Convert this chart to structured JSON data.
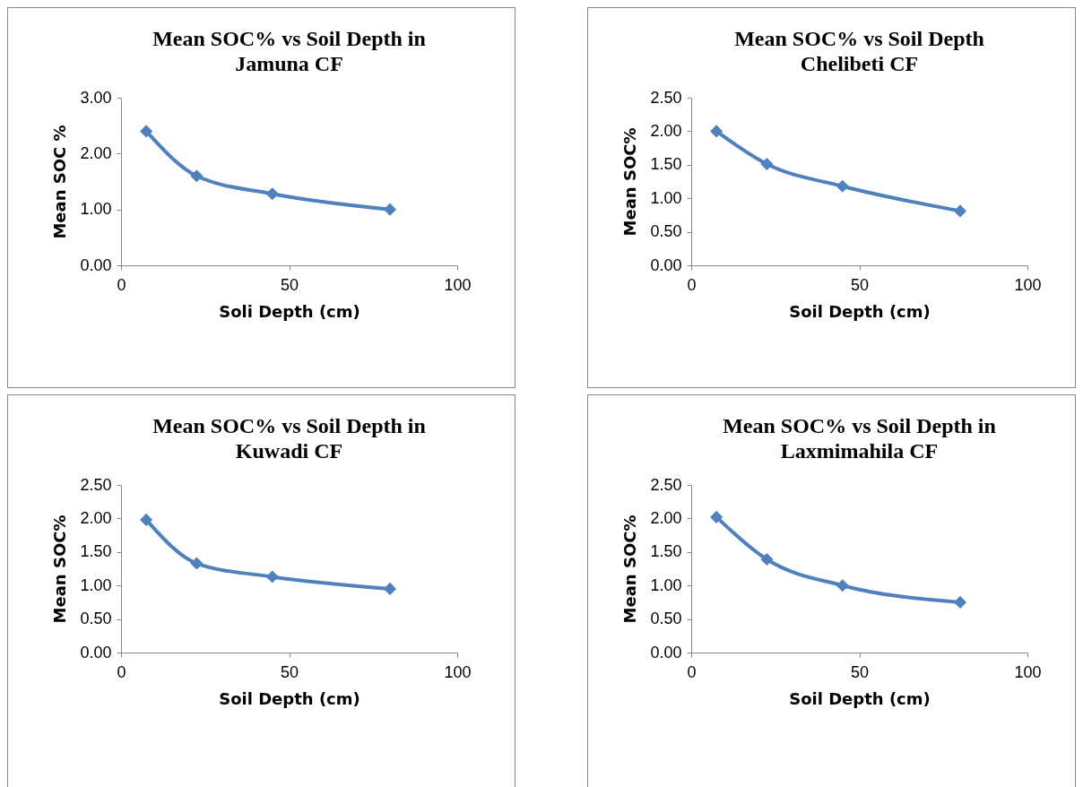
{
  "chart_data": [
    {
      "type": "line",
      "title": "Mean SOC% vs Soil Depth in Jamuna CF",
      "xlabel": "Soli Depth (cm)",
      "ylabel": "Mean SOC %",
      "x": [
        7.5,
        22.5,
        45,
        80
      ],
      "series": [
        {
          "color": "#4f81bd",
          "values": [
            2.4,
            1.6,
            1.28,
            1.0
          ]
        }
      ],
      "xlim": [
        0,
        100
      ],
      "xticks": [
        0,
        50,
        100
      ],
      "ylim": [
        0,
        3
      ],
      "yticks": [
        {
          "value": 0,
          "label": "0.00"
        },
        {
          "value": 1,
          "label": "1.00"
        },
        {
          "value": 2,
          "label": "2.00"
        },
        {
          "value": 3,
          "label": "3.00"
        }
      ],
      "grid": false,
      "marker": "diamond",
      "line_style": "solid"
    },
    {
      "type": "line",
      "title": "Mean SOC% vs Soil Depth Chelibeti CF",
      "xlabel": "Soil Depth (cm)",
      "ylabel": "Mean SOC%",
      "x": [
        7.5,
        22.5,
        45,
        80
      ],
      "series": [
        {
          "color": "#4f81bd",
          "values": [
            2.0,
            1.51,
            1.18,
            0.81
          ]
        }
      ],
      "xlim": [
        0,
        100
      ],
      "xticks": [
        0,
        50,
        100
      ],
      "ylim": [
        0,
        2.5
      ],
      "yticks": [
        {
          "value": 0,
          "label": "0.00"
        },
        {
          "value": 0.5,
          "label": "0.50"
        },
        {
          "value": 1,
          "label": "1.00"
        },
        {
          "value": 1.5,
          "label": "1.50"
        },
        {
          "value": 2,
          "label": "2.00"
        },
        {
          "value": 2.5,
          "label": "2.50"
        }
      ],
      "grid": false,
      "marker": "diamond",
      "line_style": "solid"
    },
    {
      "type": "line",
      "title": "Mean SOC% vs Soil Depth in Kuwadi CF",
      "xlabel": "Soil Depth (cm)",
      "ylabel": "Mean SOC%",
      "x": [
        7.5,
        22.5,
        45,
        80
      ],
      "series": [
        {
          "color": "#4f81bd",
          "values": [
            1.98,
            1.33,
            1.13,
            0.95
          ]
        }
      ],
      "xlim": [
        0,
        100
      ],
      "xticks": [
        0,
        50,
        100
      ],
      "ylim": [
        0,
        2.5
      ],
      "yticks": [
        {
          "value": 0,
          "label": "0.00"
        },
        {
          "value": 0.5,
          "label": "0.50"
        },
        {
          "value": 1,
          "label": "1.00"
        },
        {
          "value": 1.5,
          "label": "1.50"
        },
        {
          "value": 2,
          "label": "2.00"
        },
        {
          "value": 2.5,
          "label": "2.50"
        }
      ],
      "grid": false,
      "marker": "diamond",
      "line_style": "solid"
    },
    {
      "type": "line",
      "title": "Mean SOC% vs Soil Depth in Laxmimahila CF",
      "xlabel": "Soil Depth (cm)",
      "ylabel": "Mean SOC%",
      "x": [
        7.5,
        22.5,
        45,
        80
      ],
      "series": [
        {
          "color": "#4f81bd",
          "values": [
            2.02,
            1.39,
            1.0,
            0.75
          ]
        }
      ],
      "xlim": [
        0,
        100
      ],
      "xticks": [
        0,
        50,
        100
      ],
      "ylim": [
        0,
        2.5
      ],
      "yticks": [
        {
          "value": 0,
          "label": "0.00"
        },
        {
          "value": 0.5,
          "label": "0.50"
        },
        {
          "value": 1,
          "label": "1.00"
        },
        {
          "value": 1.5,
          "label": "1.50"
        },
        {
          "value": 2,
          "label": "2.00"
        },
        {
          "value": 2.5,
          "label": "2.50"
        }
      ],
      "grid": false,
      "marker": "diamond",
      "line_style": "solid"
    }
  ]
}
